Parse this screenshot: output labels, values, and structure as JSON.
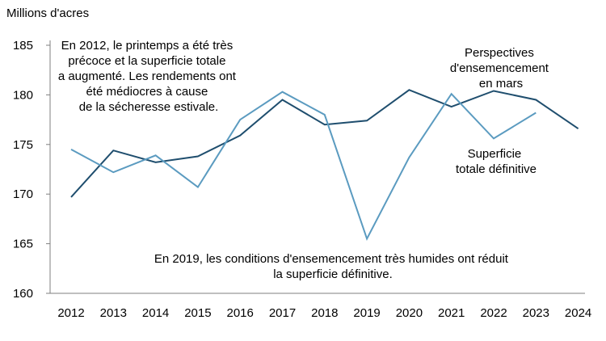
{
  "chart_data": {
    "type": "line",
    "ylabel": "Millions d'acres",
    "ylim": [
      160,
      185
    ],
    "yticks": [
      160,
      165,
      170,
      175,
      180,
      185
    ],
    "x": [
      "2012",
      "2013",
      "2014",
      "2015",
      "2016",
      "2017",
      "2018",
      "2019",
      "2020",
      "2021",
      "2022",
      "2023",
      "2024"
    ],
    "grid": false,
    "series": [
      {
        "name": "Perspectives d'ensemencement en mars",
        "color": "#1f4e6e",
        "values": [
          169.7,
          174.4,
          173.2,
          173.8,
          175.9,
          179.5,
          177.0,
          177.4,
          180.5,
          178.8,
          180.4,
          179.5,
          176.6
        ]
      },
      {
        "name": "Superficie totale définitive",
        "color": "#5b9bc0",
        "values": [
          174.5,
          172.2,
          173.9,
          170.7,
          177.5,
          180.3,
          178.0,
          165.5,
          173.7,
          180.1,
          175.6,
          178.2,
          null
        ]
      }
    ],
    "legend_labels": [
      [
        "Perspectives",
        "d'ensemencement",
        "en mars"
      ],
      [
        "Superficie",
        "totale définitive"
      ]
    ],
    "annotations": [
      [
        "En 2012, le printemps a été très",
        "précoce et la superficie totale",
        "a augmenté. Les rendements ont",
        "été médiocres à cause",
        "de la sécheresse estivale."
      ],
      [
        "En 2019, les conditions d'ensemencement très humides ont réduit",
        "la superficie définitive."
      ]
    ]
  }
}
